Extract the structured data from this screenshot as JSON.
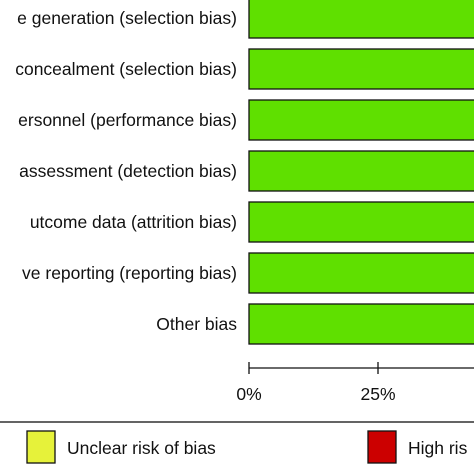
{
  "colors": {
    "low": "#5fe000",
    "unclear": "#e6f23a",
    "high": "#cc0000",
    "border": "#111111"
  },
  "chart_data": {
    "type": "bar",
    "orientation": "horizontal",
    "stacked": true,
    "categories": [
      "e generation (selection bias)",
      "concealment (selection bias)",
      "ersonnel (performance bias)",
      "assessment (detection bias)",
      "utcome data (attrition bias)",
      "ve reporting (reporting bias)",
      "Other bias"
    ],
    "series": [
      {
        "key": "low",
        "values": [
          100,
          100,
          100,
          100,
          100,
          100,
          100
        ]
      },
      {
        "key": "unclear",
        "name": "Unclear risk of bias",
        "values": [
          0,
          0,
          0,
          0,
          0,
          0,
          0
        ]
      },
      {
        "key": "high",
        "name": "High ris",
        "values": [
          0,
          0,
          0,
          0,
          0,
          0,
          0
        ]
      }
    ],
    "x_ticks": [
      "0%",
      "25%"
    ],
    "xlim": [
      0,
      100
    ],
    "grid": false,
    "legend_position": "bottom"
  }
}
